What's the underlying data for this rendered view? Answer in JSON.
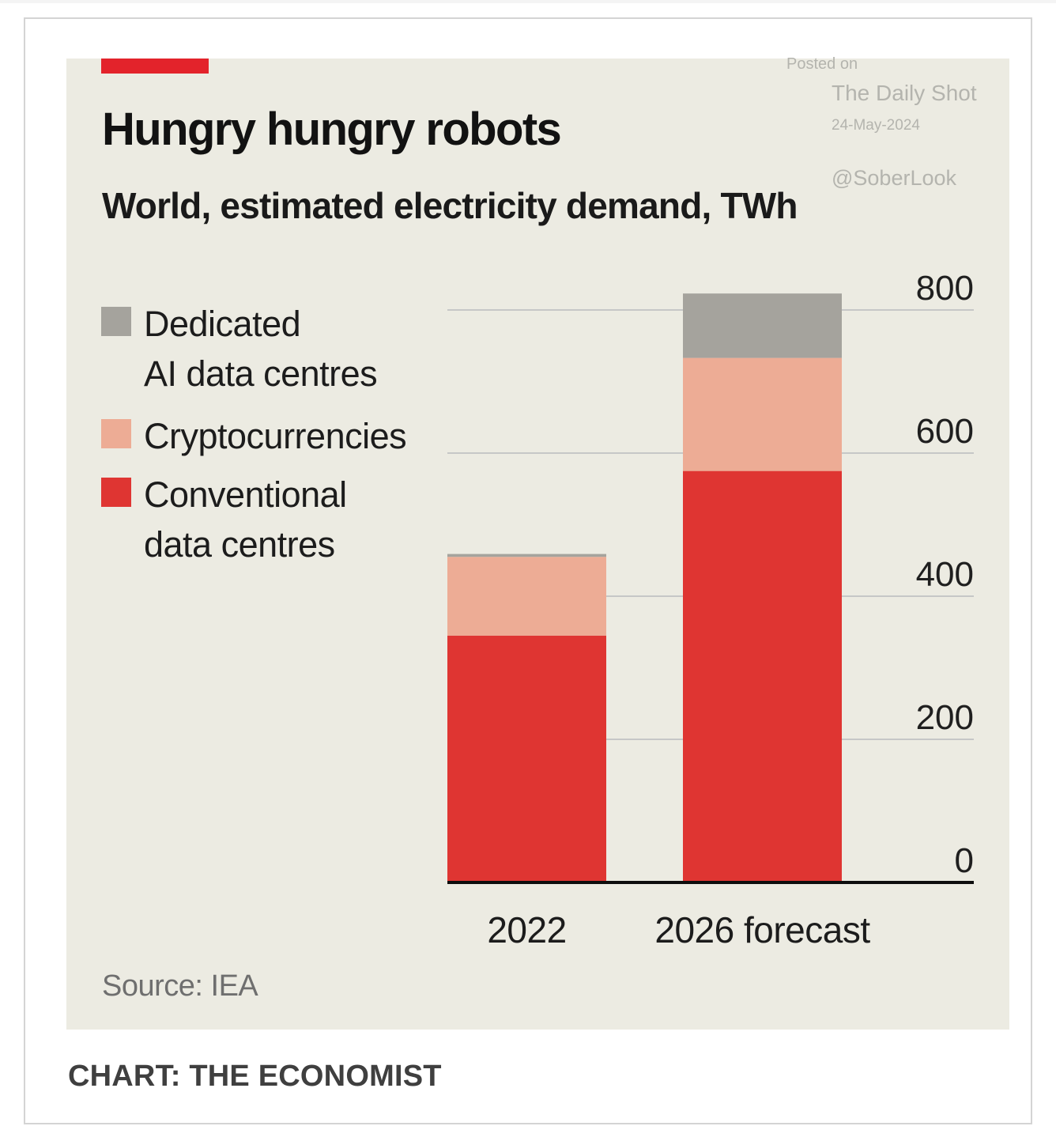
{
  "header": {
    "title": "Hungry hungry robots",
    "subtitle": "World, estimated electricity demand, TWh"
  },
  "watermark": {
    "posted": "Posted on",
    "name": "The Daily Shot",
    "date": "24-May-2024",
    "handle": "@SoberLook"
  },
  "legend": [
    {
      "line1": "Dedicated",
      "line2": "AI data centres",
      "color": "#a5a39d"
    },
    {
      "line1": "Cryptocurrencies",
      "line2": "",
      "color": "#edac95"
    },
    {
      "line1": "Conventional",
      "line2": "data centres",
      "color": "#df3532"
    }
  ],
  "chart_data": {
    "type": "bar",
    "stacked": true,
    "title": "Hungry hungry robots",
    "subtitle": "World, estimated electricity demand, TWh",
    "categories": [
      "2022",
      "2026 forecast"
    ],
    "series": [
      {
        "name": "Conventional data centres",
        "color": "#df3532",
        "values": [
          345,
          575
        ]
      },
      {
        "name": "Cryptocurrencies",
        "color": "#edac95",
        "values": [
          110,
          158
        ]
      },
      {
        "name": "Dedicated AI data centres",
        "color": "#a5a39d",
        "values": [
          4,
          90
        ]
      }
    ],
    "ylim": [
      0,
      800
    ],
    "yticks": [
      "0",
      "200",
      "400",
      "600",
      "800"
    ],
    "ytick_values": [
      0,
      200,
      400,
      600,
      800
    ],
    "y_axis_side": "right",
    "grid": true,
    "legend_position": "left"
  },
  "footer": {
    "source": "Source: IEA",
    "credit": "CHART: THE ECONOMIST"
  }
}
